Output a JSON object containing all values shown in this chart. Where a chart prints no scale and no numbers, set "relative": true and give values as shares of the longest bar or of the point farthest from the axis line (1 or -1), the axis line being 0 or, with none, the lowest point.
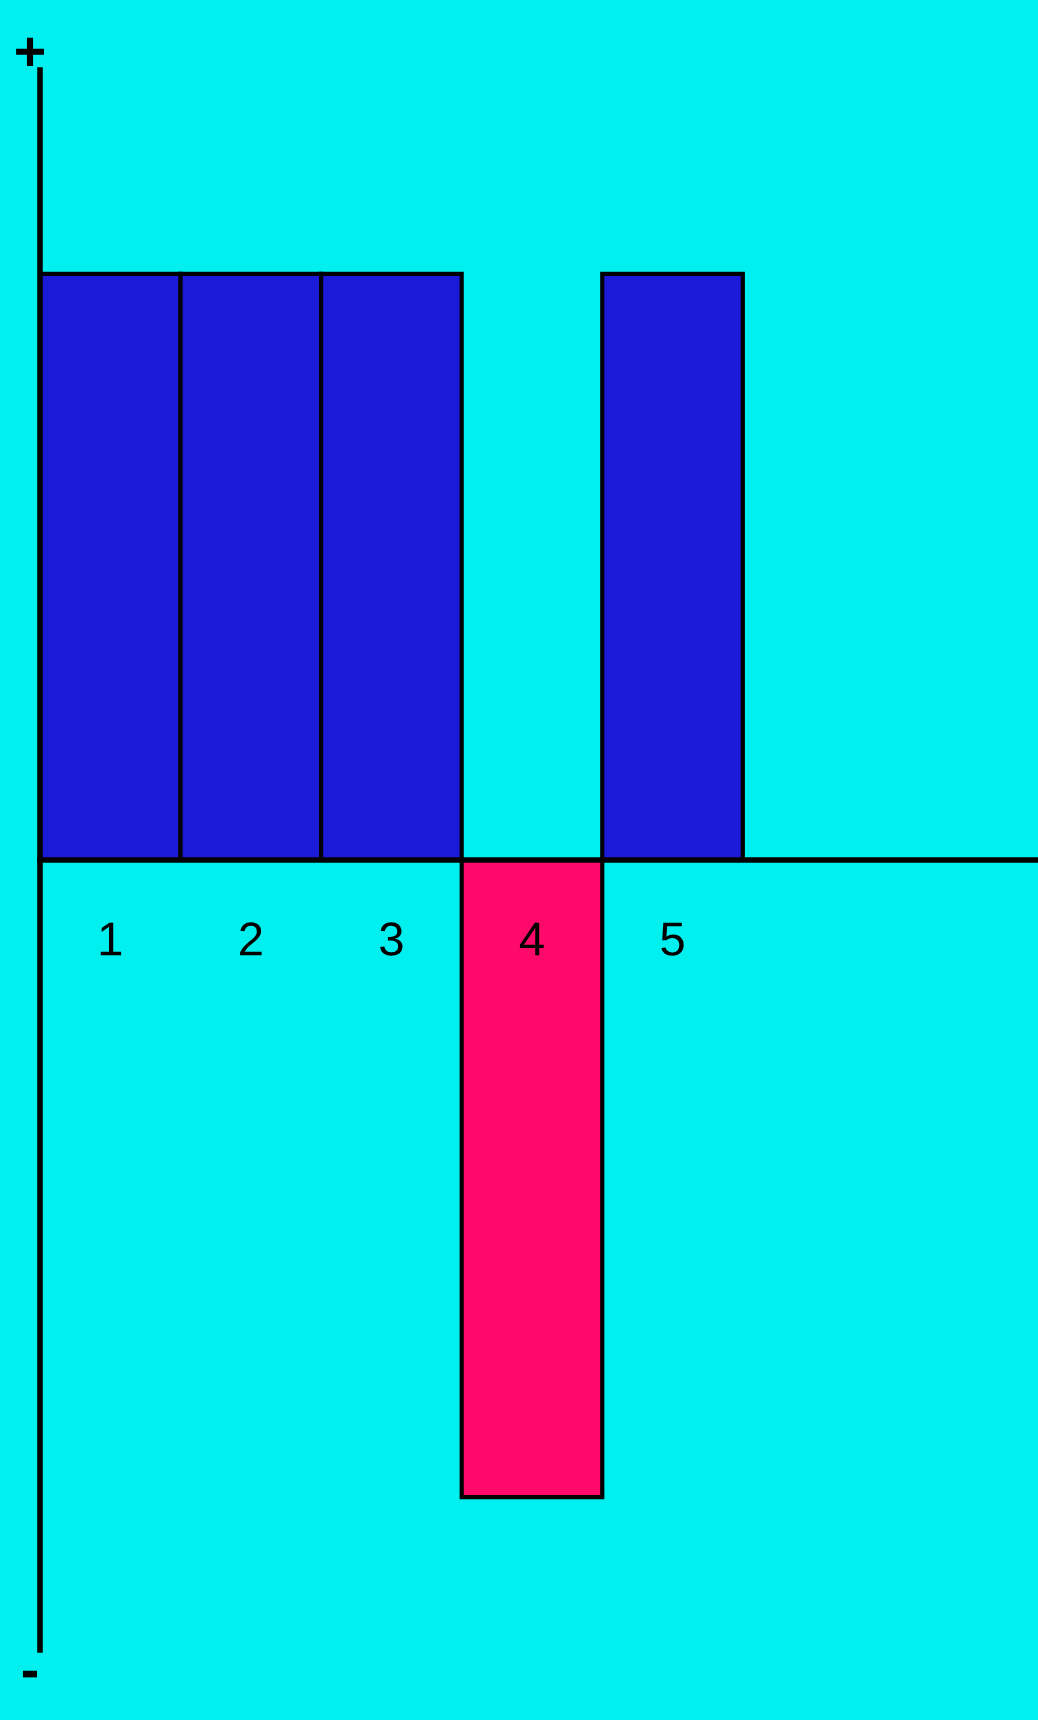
{
  "chart_data": {
    "type": "bar",
    "relative": true,
    "categories": [
      "1",
      "2",
      "3",
      "4",
      "5"
    ],
    "values": [
      0.92,
      0.92,
      0.92,
      -1,
      0.92
    ],
    "colors": [
      "#1a1ad8",
      "#1a1ad8",
      "#1a1ad8",
      "#ff0a6a",
      "#1a1ad8"
    ],
    "annotations": [
      "+",
      "-"
    ],
    "grid": false,
    "legend": false
  }
}
